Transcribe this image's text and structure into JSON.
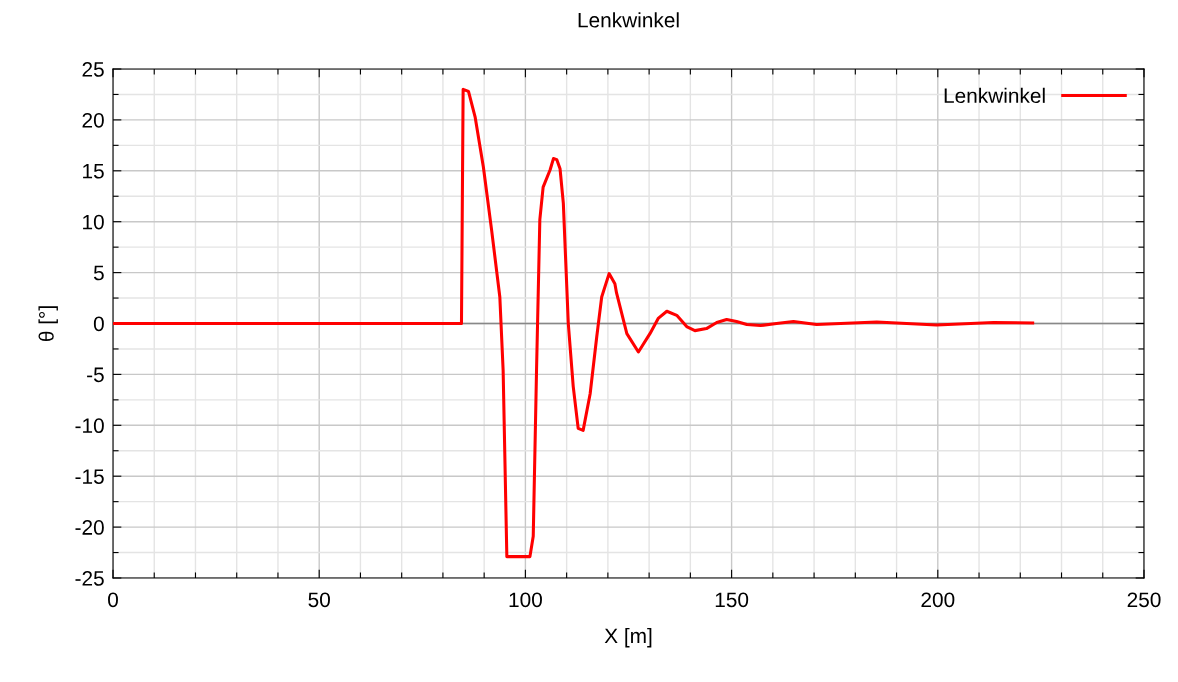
{
  "chart_data": {
    "type": "line",
    "title": "Lenkwinkel",
    "xlabel": "X [m]",
    "ylabel": "θ [°]",
    "xlim": [
      0,
      250
    ],
    "ylim": [
      -25,
      25
    ],
    "xticks": [
      0,
      {
        "value": 10,
        "label": null
      },
      {
        "value": 20,
        "label": null
      },
      {
        "value": 30,
        "label": null
      },
      {
        "value": 40,
        "label": null
      },
      50,
      {
        "value": 60,
        "label": null
      },
      {
        "value": 70,
        "label": null
      },
      {
        "value": 80,
        "label": null
      },
      {
        "value": 90,
        "label": null
      },
      100,
      {
        "value": 110,
        "label": null
      },
      {
        "value": 120,
        "label": null
      },
      {
        "value": 130,
        "label": null
      },
      {
        "value": 140,
        "label": null
      },
      150,
      {
        "value": 160,
        "label": null
      },
      {
        "value": 170,
        "label": null
      },
      {
        "value": 180,
        "label": null
      },
      {
        "value": 190,
        "label": null
      },
      200,
      {
        "value": 210,
        "label": null
      },
      {
        "value": 220,
        "label": null
      },
      {
        "value": 230,
        "label": null
      },
      {
        "value": 240,
        "label": null
      },
      250
    ],
    "yticks": [
      -25,
      {
        "value": -22.5,
        "label": null
      },
      -20,
      {
        "value": -17.5,
        "label": null
      },
      -15,
      {
        "value": -12.5,
        "label": null
      },
      -10,
      {
        "value": -7.5,
        "label": null
      },
      -5,
      {
        "value": -2.5,
        "label": null
      },
      0,
      {
        "value": 2.5,
        "label": null
      },
      5,
      {
        "value": 7.5,
        "label": null
      },
      10,
      {
        "value": 12.5,
        "label": null
      },
      15,
      {
        "value": 17.5,
        "label": null
      },
      20,
      {
        "value": 22.5,
        "label": null
      },
      25
    ],
    "grid": true,
    "legend": "top right",
    "ref_lines": [
      {
        "axis": "y",
        "value": 0,
        "color": "#888888"
      }
    ],
    "series": [
      {
        "name": "Lenkwinkel",
        "color": "#ff0000",
        "line_style": "solid",
        "x": [
          0,
          84.5,
          84.9,
          86.2,
          87.8,
          89.8,
          91.8,
          93.8,
          94.6,
          95.5,
          101.1,
          101.9,
          102.7,
          103.5,
          104.3,
          106.0,
          106.8,
          107.6,
          108.4,
          109.2,
          110.4,
          111.6,
          112.8,
          114.0,
          115.7,
          117.3,
          118.5,
          120.3,
          121.7,
          122.1,
          124.6,
          127.4,
          130.2,
          132.2,
          134.3,
          136.7,
          139.1,
          141.1,
          143.9,
          146.4,
          148.8,
          151.2,
          153.7,
          157.0,
          160.9,
          165.0,
          170.6,
          185.2,
          199.7,
          213.5,
          223.0
        ],
        "values": [
          0,
          0,
          23.0,
          22.8,
          20.3,
          15.4,
          9.2,
          2.6,
          -4.6,
          -22.9,
          -22.9,
          -20.9,
          -4.6,
          10.2,
          13.4,
          15.1,
          16.2,
          16.1,
          15.2,
          11.8,
          0,
          -6.2,
          -10.3,
          -10.5,
          -6.9,
          -1.3,
          2.6,
          4.9,
          3.9,
          3.0,
          -1.0,
          -2.8,
          -1.0,
          0.5,
          1.2,
          0.8,
          -0.3,
          -0.7,
          -0.5,
          0.1,
          0.4,
          0.2,
          -0.1,
          -0.2,
          0,
          0.2,
          -0.1,
          0.15,
          -0.15,
          0.1,
          0.05
        ]
      }
    ]
  }
}
